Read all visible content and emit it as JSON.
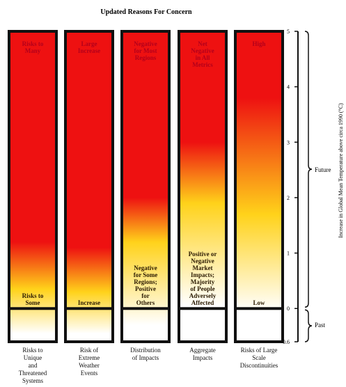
{
  "chart_data": {
    "type": "bar",
    "title": "Updated Reasons For Concern",
    "ylabel": "Increase in Global Mean Temperature above circa 1990 (°C)",
    "ylim": [
      -0.6,
      5
    ],
    "yticks": [
      "5",
      "4",
      "3",
      "2",
      "1",
      "0",
      "-0.6"
    ],
    "period_labels": [
      "Future",
      "Past"
    ],
    "colors": {
      "red": "#ee1111",
      "yellow": "#ffd21a",
      "white": "#ffffff",
      "border": "#111111"
    },
    "categories": [
      "Risks to Unique and Threatened Systems",
      "Risk of Extreme Weather Events",
      "Distribution of Impacts",
      "Aggregate Impacts",
      "Risks of Large Scale Discontinuities"
    ],
    "category_lines": [
      [
        "Risks to",
        "Unique",
        "and",
        "Threatened",
        "Systems"
      ],
      [
        "Risk of",
        "Extreme",
        "Weather",
        "Events"
      ],
      [
        "Distribution",
        "of Impacts"
      ],
      [
        "Aggregate",
        "Impacts"
      ],
      [
        "Risks of Large",
        "Scale",
        "Discontinuities"
      ]
    ],
    "bars": [
      {
        "top_label": [
          "Risks to",
          "Many"
        ],
        "low_label": [
          "Risks to",
          "Some"
        ],
        "gradient": {
          "red_from": 1.2,
          "yellow_at": 0.35,
          "white_at": -0.45
        }
      },
      {
        "top_label": [
          "Large",
          "Increase"
        ],
        "low_label": [
          "Increase"
        ],
        "gradient": {
          "red_from": 1.1,
          "yellow_at": 0.3,
          "white_at": -0.45
        }
      },
      {
        "top_label": [
          "Negative",
          "for Most",
          "Regions"
        ],
        "low_label": [
          "Negative",
          "for Some",
          "Regions;",
          "Positive",
          "for",
          "Others"
        ],
        "gradient": {
          "red_from": 2.0,
          "yellow_at": 1.2,
          "white_at": -0.3
        }
      },
      {
        "top_label": [
          "Net",
          "Negative",
          "in All",
          "Metrics"
        ],
        "low_label": [
          "Positive or",
          "Negative",
          "Market",
          "Impacts;",
          "Majority",
          "of People",
          "Adversely",
          "Affected"
        ],
        "gradient": {
          "red_from": 3.0,
          "yellow_at": 1.9,
          "white_at": 0.05
        }
      },
      {
        "top_label": [
          "High"
        ],
        "low_label": [
          "Low"
        ],
        "gradient": {
          "red_from": 3.8,
          "yellow_at": 1.7,
          "white_at": -0.05
        }
      }
    ]
  }
}
